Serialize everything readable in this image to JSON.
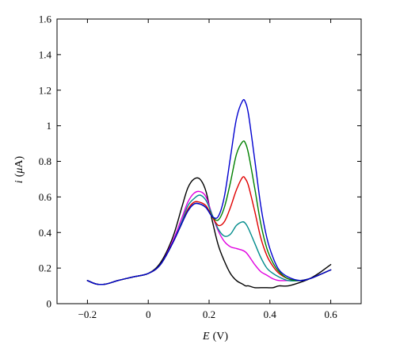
{
  "chart_data": {
    "type": "line",
    "title": "",
    "xlabel_var": "E",
    "xlabel_unit": "(V)",
    "ylabel_var": "i",
    "ylabel_unit_open": "(",
    "ylabel_unit_mu": "μ",
    "ylabel_unit_rest": "A)",
    "xlim": [
      -0.3,
      0.7
    ],
    "ylim": [
      0,
      1.6
    ],
    "x_ticks": [
      -0.2,
      0,
      0.2,
      0.4,
      0.6
    ],
    "x_tick_labels": [
      "−0.2",
      "0",
      "0.2",
      "0.4",
      "0.6"
    ],
    "y_ticks": [
      0,
      0.2,
      0.4,
      0.6,
      0.8,
      1,
      1.2,
      1.4,
      1.6
    ],
    "y_tick_labels": [
      "0",
      "0.2",
      "0.4",
      "0.6",
      "0.8",
      "1",
      "1.2",
      "1.4",
      "1.6"
    ],
    "grid": false,
    "legend": "none",
    "x": [
      -0.2,
      -0.17,
      -0.14,
      -0.1,
      -0.05,
      0,
      0.04,
      0.08,
      0.11,
      0.13,
      0.15,
      0.17,
      0.19,
      0.21,
      0.23,
      0.25,
      0.27,
      0.29,
      0.31,
      0.32,
      0.33,
      0.35,
      0.37,
      0.39,
      0.41,
      0.43,
      0.46,
      0.5,
      0.53,
      0.56,
      0.6
    ],
    "series": [
      {
        "color": "#000000",
        "values": [
          0.13,
          0.11,
          0.11,
          0.13,
          0.15,
          0.17,
          0.23,
          0.37,
          0.54,
          0.65,
          0.7,
          0.7,
          0.63,
          0.47,
          0.33,
          0.24,
          0.17,
          0.13,
          0.11,
          0.1,
          0.1,
          0.09,
          0.09,
          0.09,
          0.09,
          0.1,
          0.1,
          0.12,
          0.14,
          0.17,
          0.22
        ]
      },
      {
        "color": "#e000e0",
        "values": [
          0.13,
          0.11,
          0.11,
          0.13,
          0.15,
          0.17,
          0.22,
          0.35,
          0.48,
          0.57,
          0.62,
          0.63,
          0.6,
          0.5,
          0.41,
          0.35,
          0.32,
          0.31,
          0.3,
          0.29,
          0.27,
          0.22,
          0.18,
          0.16,
          0.14,
          0.13,
          0.13,
          0.13,
          0.14,
          0.16,
          0.19
        ]
      },
      {
        "color": "#008b8b",
        "values": [
          0.13,
          0.11,
          0.11,
          0.13,
          0.15,
          0.17,
          0.22,
          0.34,
          0.46,
          0.55,
          0.59,
          0.61,
          0.58,
          0.5,
          0.42,
          0.38,
          0.39,
          0.44,
          0.46,
          0.45,
          0.42,
          0.34,
          0.26,
          0.2,
          0.17,
          0.15,
          0.13,
          0.13,
          0.14,
          0.16,
          0.19
        ]
      },
      {
        "color": "#e00000",
        "values": [
          0.13,
          0.11,
          0.11,
          0.13,
          0.15,
          0.17,
          0.22,
          0.34,
          0.45,
          0.53,
          0.57,
          0.57,
          0.55,
          0.49,
          0.44,
          0.46,
          0.54,
          0.64,
          0.71,
          0.7,
          0.66,
          0.52,
          0.37,
          0.27,
          0.21,
          0.17,
          0.14,
          0.13,
          0.14,
          0.16,
          0.19
        ]
      },
      {
        "color": "#008000",
        "values": [
          0.13,
          0.11,
          0.11,
          0.13,
          0.15,
          0.17,
          0.22,
          0.34,
          0.45,
          0.52,
          0.56,
          0.56,
          0.54,
          0.49,
          0.47,
          0.54,
          0.68,
          0.84,
          0.91,
          0.9,
          0.84,
          0.65,
          0.45,
          0.31,
          0.23,
          0.18,
          0.14,
          0.13,
          0.14,
          0.16,
          0.19
        ]
      },
      {
        "color": "#0000d0",
        "values": [
          0.13,
          0.11,
          0.11,
          0.13,
          0.15,
          0.17,
          0.22,
          0.34,
          0.45,
          0.52,
          0.56,
          0.56,
          0.54,
          0.49,
          0.49,
          0.6,
          0.82,
          1.04,
          1.14,
          1.13,
          1.06,
          0.81,
          0.55,
          0.37,
          0.26,
          0.19,
          0.15,
          0.13,
          0.14,
          0.16,
          0.19
        ]
      }
    ]
  }
}
